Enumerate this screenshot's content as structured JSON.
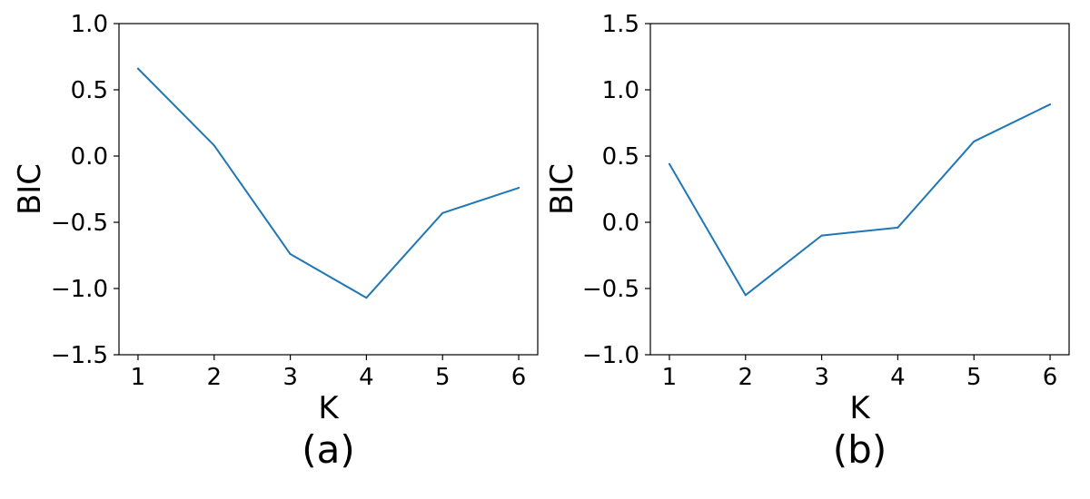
{
  "chart_data": [
    {
      "type": "line",
      "caption": "(a)",
      "xlabel": "K",
      "ylabel": "BIC",
      "x": [
        1,
        2,
        3,
        4,
        5,
        6
      ],
      "xticks": [
        "1",
        "2",
        "3",
        "4",
        "5",
        "6"
      ],
      "xlim": [
        0.75,
        6.25
      ],
      "ylim": [
        -1.5,
        1.0
      ],
      "yticks": [
        -1.5,
        -1.0,
        -0.5,
        0.0,
        0.5,
        1.0
      ],
      "yticklabels": [
        "−1.5",
        "−1.0",
        "−0.5",
        "0.0",
        "0.5",
        "1.0"
      ],
      "grid": false,
      "series": [
        {
          "values": [
            0.66,
            0.08,
            -0.74,
            -1.07,
            -0.43,
            -0.24
          ],
          "color": "#1f77b4"
        }
      ]
    },
    {
      "type": "line",
      "caption": "(b)",
      "xlabel": "K",
      "ylabel": "BIC",
      "x": [
        1,
        2,
        3,
        4,
        5,
        6
      ],
      "xticks": [
        "1",
        "2",
        "3",
        "4",
        "5",
        "6"
      ],
      "xlim": [
        0.75,
        6.25
      ],
      "ylim": [
        -1.0,
        1.5
      ],
      "yticks": [
        -1.0,
        -0.5,
        0.0,
        0.5,
        1.0,
        1.5
      ],
      "yticklabels": [
        "−1.0",
        "−0.5",
        "0.0",
        "0.5",
        "1.0",
        "1.5"
      ],
      "grid": false,
      "series": [
        {
          "values": [
            0.44,
            -0.55,
            -0.1,
            -0.04,
            0.61,
            0.89
          ],
          "color": "#1f77b4"
        }
      ]
    }
  ]
}
